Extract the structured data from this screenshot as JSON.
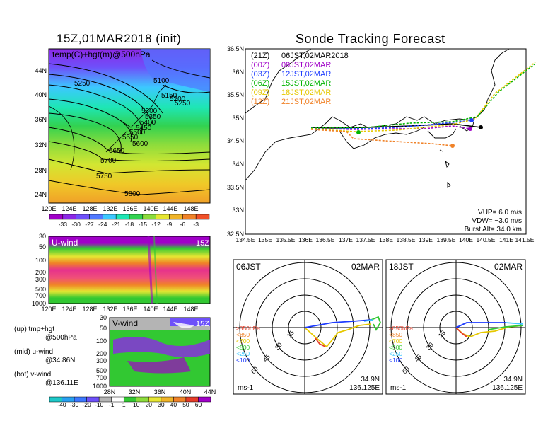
{
  "left_panel": {
    "title": "15Z,01MAR2018 (init)",
    "top_map": {
      "label": "temp(C)+hgt(m)@500hPa",
      "lat_labels": [
        "44N",
        "40N",
        "36N",
        "32N",
        "28N",
        "24N"
      ],
      "lon_labels": [
        "120E",
        "124E",
        "128E",
        "132E",
        "136E",
        "140E",
        "144E",
        "148E"
      ],
      "contour_labels": [
        "5100",
        "5150",
        "5200",
        "5250",
        "5250",
        "5300",
        "5350",
        "5400",
        "5450",
        "5500",
        "5550",
        "5600",
        "5650",
        "5700",
        "5750",
        "5800"
      ],
      "colorbar_labels": [
        "-33",
        "-30",
        "-27",
        "-24",
        "-21",
        "-18",
        "-15",
        "-12",
        "-9",
        "-6",
        "-3"
      ],
      "colorbar_colors": [
        "#a000c8",
        "#8c28e6",
        "#6e50fa",
        "#5078ff",
        "#3cc8ff",
        "#1ee6b4",
        "#32d250",
        "#8cdc3c",
        "#e6e632",
        "#f0b428",
        "#f08228",
        "#f05028"
      ]
    },
    "uwind": {
      "label": "U-wind",
      "time": "15Z",
      "y_labels": [
        "30",
        "50",
        "100",
        "200",
        "300",
        "500",
        "700",
        "1000"
      ],
      "x_labels": [
        "120E",
        "124E",
        "128E",
        "132E",
        "136E",
        "140E",
        "144E",
        "148E"
      ]
    },
    "vwind": {
      "label": "V-wind",
      "time": "15Z",
      "y_labels": [
        "30",
        "50",
        "100",
        "200",
        "300",
        "500",
        "700",
        "1000"
      ],
      "x_labels": [
        "28N",
        "32N",
        "36N",
        "40N",
        "44N"
      ]
    },
    "legend_notes": [
      {
        "a": "(up) tmp+hgt",
        "b": "@500hPa"
      },
      {
        "a": "(mid) u-wind",
        "b": "@34.86N"
      },
      {
        "a": "(bot) v-wind",
        "b": "@136.11E"
      }
    ],
    "wind_colorbar_labels": [
      "-40",
      "-30",
      "-20",
      "-10",
      "-1",
      "1",
      "10",
      "20",
      "30",
      "40",
      "50",
      "60"
    ],
    "wind_colorbar_colors": [
      "#1ec8c8",
      "#28a0f0",
      "#3c78ff",
      "#6e50fa",
      "#b4b4b4",
      "#ffffff",
      "#32c832",
      "#8cdc3c",
      "#e6e632",
      "#f0b428",
      "#f08228",
      "#e63c28",
      "#a000c8"
    ]
  },
  "main_map": {
    "title": "Sonde Tracking Forecast",
    "lat_labels": [
      "36.5N",
      "36N",
      "35.5N",
      "35N",
      "34.5N",
      "34N",
      "33.5N",
      "33N",
      "32.5N"
    ],
    "lon_labels": [
      "134.5E",
      "135E",
      "135.5E",
      "136E",
      "136.5E",
      "137E",
      "137.5E",
      "138E",
      "138.5E",
      "139E",
      "139.5E",
      "140E",
      "140.5E",
      "141E",
      "141.5E"
    ],
    "launches": [
      {
        "code": "(21Z)",
        "time": "06JST,02MAR2018",
        "color": "#000000"
      },
      {
        "code": "(00Z)",
        "time": "09JST,02MAR",
        "color": "#a000c8"
      },
      {
        "code": "(03Z)",
        "time": "12JST,02MAR",
        "color": "#1e3cff"
      },
      {
        "code": "(06Z)",
        "time": "15JST,02MAR",
        "color": "#00b400"
      },
      {
        "code": "(09Z)",
        "time": "18JST,02MAR",
        "color": "#e6c800"
      },
      {
        "code": "(12Z)",
        "time": "21JST,02MAR",
        "color": "#f08228"
      }
    ],
    "params": {
      "vup": "VUP=  6.0  m/s",
      "vdw": "VDW= −3.0  m/s",
      "burst": "Burst Alt=  34.0  km"
    }
  },
  "polar_plots": [
    {
      "time": "06JST",
      "date": "02MAR",
      "lat": "34.9N",
      "lon": "136.125E",
      "unit": "ms-1",
      "ring_labels": [
        "15",
        "30",
        "45",
        "60"
      ]
    },
    {
      "time": "18JST",
      "date": "02MAR",
      "lat": "34.9N",
      "lon": "136.125E",
      "unit": "ms-1",
      "ring_labels": [
        "15",
        "30",
        "45",
        "60"
      ]
    }
  ],
  "pressure_legend": [
    {
      "label": "≥850hPa",
      "color": "#e63c28"
    },
    {
      "label": "<850",
      "color": "#f08228"
    },
    {
      "label": "<700",
      "color": "#e6c800"
    },
    {
      "label": "<500",
      "color": "#32c832"
    },
    {
      "label": "<250",
      "color": "#3cc8ff"
    },
    {
      "label": "<100",
      "color": "#1e3cff"
    }
  ]
}
